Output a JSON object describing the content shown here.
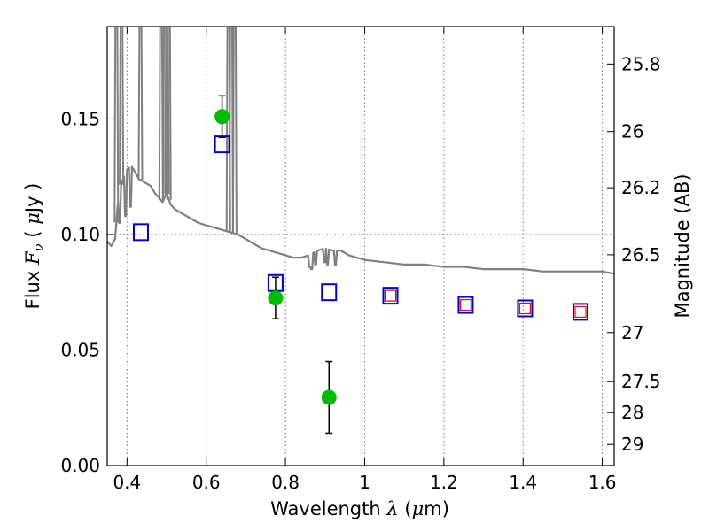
{
  "chart_data": {
    "type": "scatter",
    "xlabel": {
      "text": "Wavelength",
      "symbol": "λ",
      "unit_open": "(",
      "unit_mu": "μ",
      "unit_rest": "m)"
    },
    "ylabel": {
      "text": "Flux",
      "symbol": "F",
      "subscript": "ν",
      "unit_open": "(",
      "unit_mu": "μ",
      "unit_rest": "Jy )"
    },
    "ylabel_right": "Magnitude (AB)",
    "xlim": [
      0.35,
      1.63
    ],
    "ylim": [
      0.0,
      0.19
    ],
    "x_ticks": [
      {
        "value": 0.4,
        "label": "0.4"
      },
      {
        "value": 0.6,
        "label": "0.6"
      },
      {
        "value": 0.8,
        "label": "0.8"
      },
      {
        "value": 1.0,
        "label": "1"
      },
      {
        "value": 1.2,
        "label": "1.2"
      },
      {
        "value": 1.4,
        "label": "1.4"
      },
      {
        "value": 1.6,
        "label": "1.6"
      }
    ],
    "y_ticks": [
      {
        "value": 0.0,
        "label": "0.00"
      },
      {
        "value": 0.05,
        "label": "0.05"
      },
      {
        "value": 0.1,
        "label": "0.10"
      },
      {
        "value": 0.15,
        "label": "0.15"
      }
    ],
    "mag_ticks": [
      {
        "value": 25.8,
        "label": "25.8"
      },
      {
        "value": 26.0,
        "label": "26"
      },
      {
        "value": 26.2,
        "label": "26.2"
      },
      {
        "value": 26.5,
        "label": "26.5"
      },
      {
        "value": 27.0,
        "label": "27"
      },
      {
        "value": 27.5,
        "label": "27.5"
      },
      {
        "value": 28.0,
        "label": "28"
      },
      {
        "value": 29.0,
        "label": "29"
      }
    ],
    "grid": true,
    "model_spectrum": {
      "color": "#808080",
      "x": [
        0.35,
        0.36,
        0.37,
        0.375,
        0.38,
        0.39,
        0.4,
        0.41,
        0.42,
        0.43,
        0.44,
        0.45,
        0.46,
        0.47,
        0.48,
        0.49,
        0.5,
        0.51,
        0.52,
        0.54,
        0.56,
        0.58,
        0.6,
        0.62,
        0.64,
        0.66,
        0.68,
        0.7,
        0.72,
        0.74,
        0.76,
        0.78,
        0.8,
        0.82,
        0.84,
        0.86,
        0.88,
        0.9,
        0.92,
        0.94,
        0.96,
        0.98,
        1.0,
        1.05,
        1.1,
        1.15,
        1.2,
        1.25,
        1.3,
        1.35,
        1.4,
        1.45,
        1.5,
        1.55,
        1.6,
        1.63
      ],
      "y": [
        0.097,
        0.095,
        0.098,
        0.11,
        0.118,
        0.124,
        0.128,
        0.13,
        0.127,
        0.124,
        0.123,
        0.122,
        0.121,
        0.118,
        0.116,
        0.114,
        0.118,
        0.113,
        0.111,
        0.109,
        0.107,
        0.105,
        0.104,
        0.103,
        0.102,
        0.101,
        0.1,
        0.098,
        0.096,
        0.094,
        0.093,
        0.092,
        0.091,
        0.09,
        0.09,
        0.091,
        0.093,
        0.094,
        0.093,
        0.093,
        0.091,
        0.09,
        0.089,
        0.088,
        0.087,
        0.087,
        0.086,
        0.086,
        0.085,
        0.085,
        0.085,
        0.084,
        0.084,
        0.084,
        0.084,
        0.083
      ],
      "emission_lines": [
        {
          "x": 0.373,
          "peak": 0.19
        },
        {
          "x": 0.386,
          "peak": 0.19
        },
        {
          "x": 0.434,
          "peak": 0.19
        },
        {
          "x": 0.486,
          "peak": 0.19
        },
        {
          "x": 0.496,
          "peak": 0.19
        },
        {
          "x": 0.501,
          "peak": 0.19
        },
        {
          "x": 0.506,
          "peak": 0.19
        },
        {
          "x": 0.656,
          "peak": 0.19
        },
        {
          "x": 0.663,
          "peak": 0.19
        },
        {
          "x": 0.672,
          "peak": 0.19
        }
      ],
      "absorption_dips": [
        {
          "x": 0.382,
          "depth": 0.105
        },
        {
          "x": 0.397,
          "depth": 0.108
        },
        {
          "x": 0.41,
          "depth": 0.112
        },
        {
          "x": 0.86,
          "depth": 0.086
        },
        {
          "x": 0.866,
          "depth": 0.085
        },
        {
          "x": 0.876,
          "depth": 0.087
        },
        {
          "x": 0.899,
          "depth": 0.088
        },
        {
          "x": 0.905,
          "depth": 0.087
        },
        {
          "x": 0.925,
          "depth": 0.087
        }
      ]
    },
    "model_photometry": {
      "color": "#0000cc",
      "x": [
        0.435,
        0.64,
        0.775,
        0.91,
        1.065,
        1.255,
        1.405,
        1.545
      ],
      "y": [
        0.101,
        0.139,
        0.079,
        0.075,
        0.0735,
        0.0695,
        0.068,
        0.0665
      ]
    },
    "comparison_points": {
      "color": "#ff0000",
      "x": [
        1.065,
        1.255,
        1.405,
        1.545
      ],
      "y": [
        0.0735,
        0.0695,
        0.068,
        0.0665
      ]
    },
    "observed": {
      "color": "#00bb00",
      "x": [
        0.64,
        0.775,
        0.91
      ],
      "y": [
        0.151,
        0.0725,
        0.0295
      ],
      "yerr": [
        0.009,
        0.009,
        0.0155
      ]
    }
  }
}
